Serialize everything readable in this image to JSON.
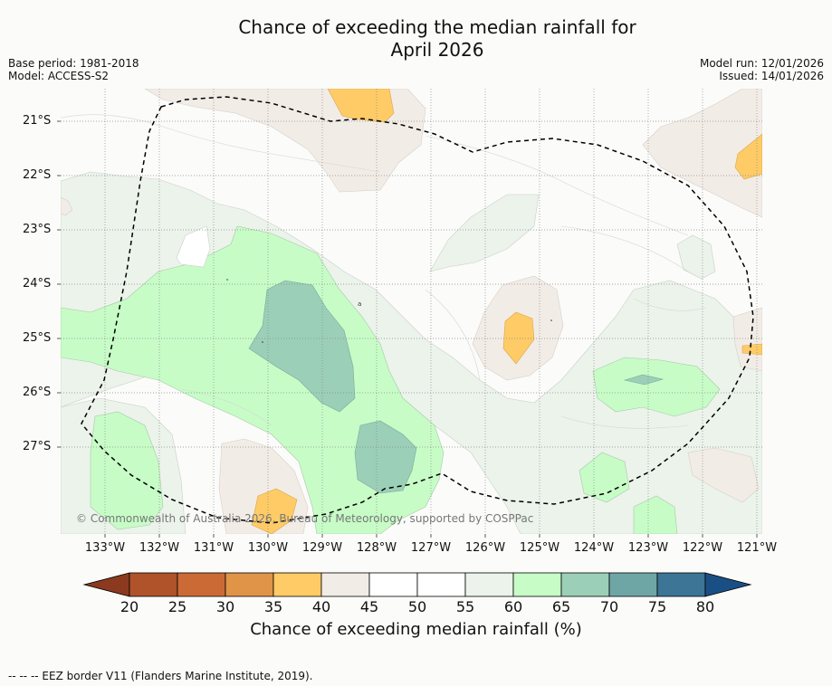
{
  "title": {
    "line1": "Chance of exceeding the median rainfall for",
    "line2": "April 2026"
  },
  "meta": {
    "base_period": "Base period: 1981-2018",
    "model": "Model: ACCESS-S2",
    "model_run": "Model run: 12/01/2026",
    "issued": "Issued: 14/01/2026"
  },
  "map": {
    "lat_labels": [
      "21°S",
      "22°S",
      "23°S",
      "24°S",
      "25°S",
      "26°S",
      "27°S"
    ],
    "lon_labels": [
      "133°W",
      "132°W",
      "131°W",
      "130°W",
      "129°W",
      "128°W",
      "127°W",
      "126°W",
      "125°W",
      "124°W",
      "123°W",
      "122°W",
      "121°W"
    ],
    "copyright": "© Commonwealth of Australia 2026, Bureau of Meteorology, supported by COSPPac"
  },
  "colorbar": {
    "ticks": [
      "20",
      "25",
      "30",
      "35",
      "40",
      "45",
      "50",
      "55",
      "60",
      "65",
      "70",
      "75",
      "80"
    ],
    "colors": [
      "#8b3a1f",
      "#b0522a",
      "#cc6a36",
      "#e09448",
      "#fecb66",
      "#f2ece7",
      "#ffffff",
      "#ffffff",
      "#ebf3eb",
      "#c7fcc7",
      "#9bcfb8",
      "#6ea6a6",
      "#3c7596",
      "#1a4f86"
    ],
    "label": "Chance of exceeding median rainfall (%)"
  },
  "footer": "--  --  -- EEZ border V11 (Flanders Marine Institute, 2019)."
}
